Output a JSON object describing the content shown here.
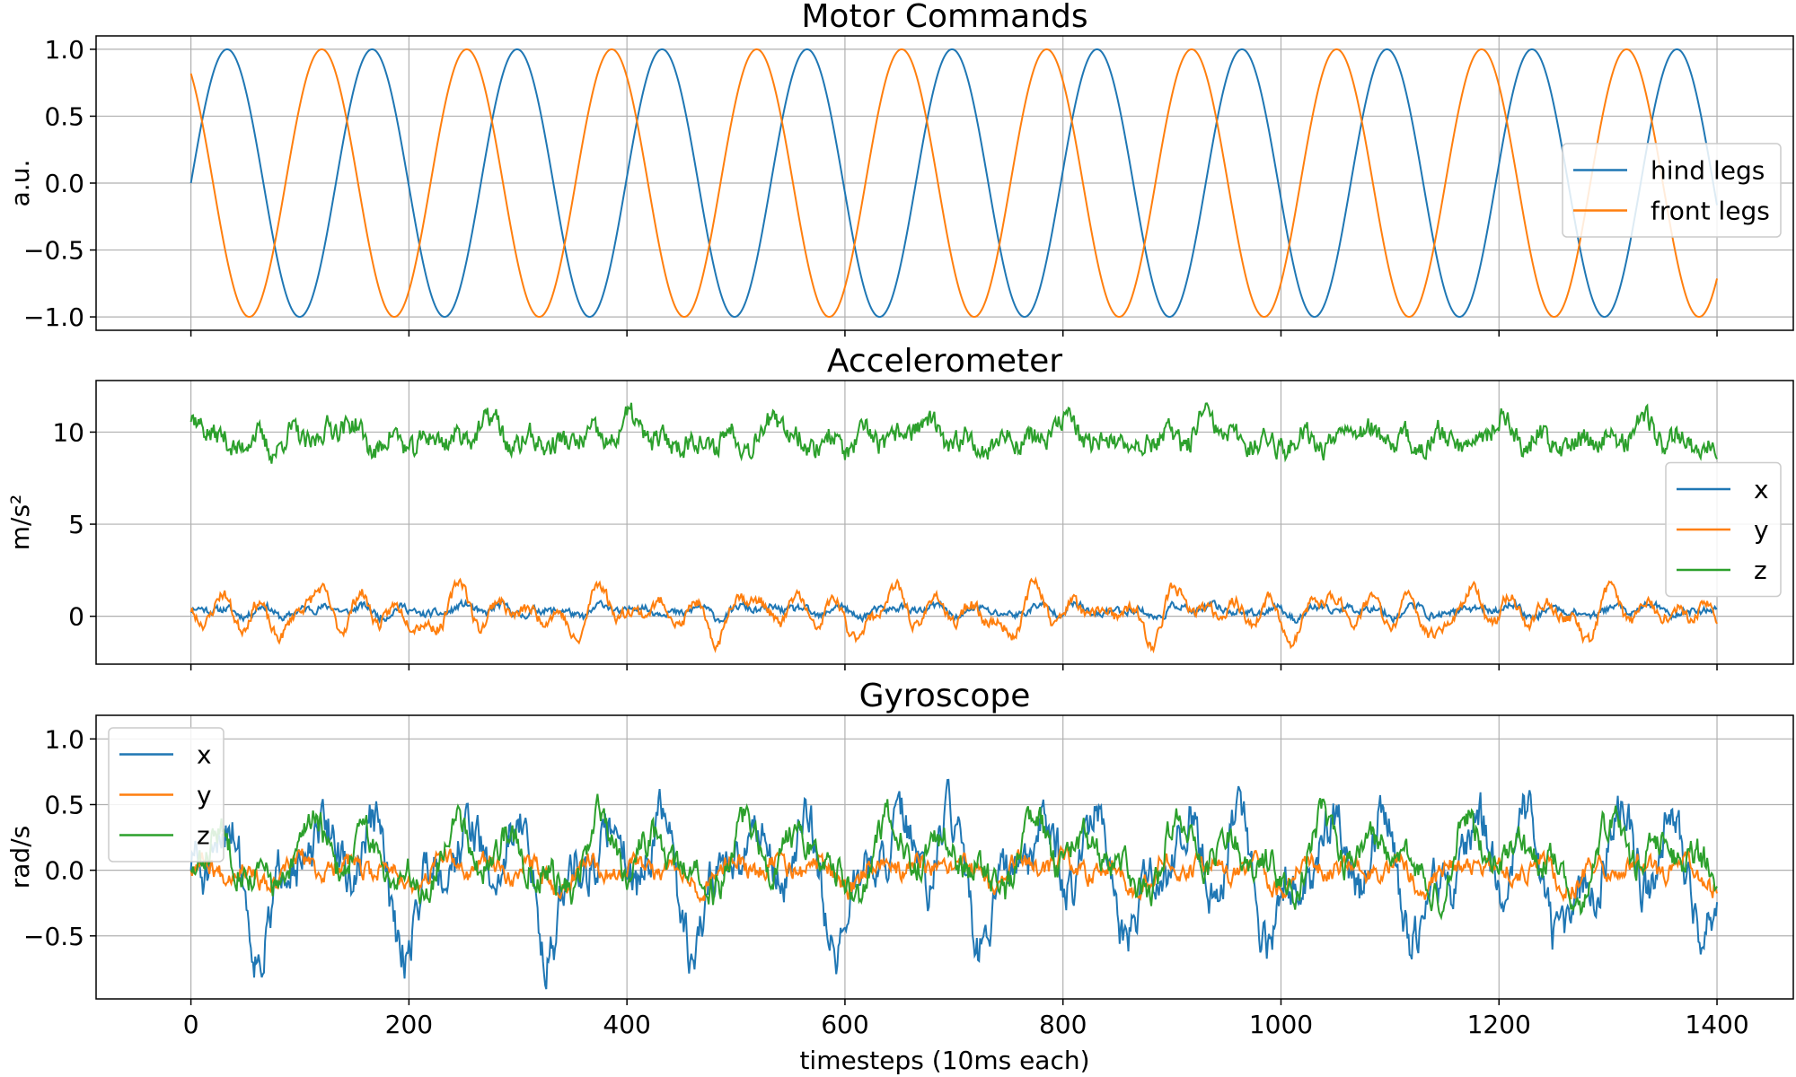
{
  "chart_data": [
    {
      "type": "line",
      "title": "Motor Commands",
      "ylabel": "a.u.",
      "xlim": [
        -87,
        1470
      ],
      "ylim": [
        -1.1,
        1.1
      ],
      "xticks": [
        0,
        200,
        400,
        600,
        800,
        1000,
        1200,
        1400
      ],
      "yticks": [
        1.0,
        0.5,
        0.0,
        -0.5,
        -1.0
      ],
      "ytick_labels": [
        "1.0",
        "0.5",
        "0.0",
        "−0.5",
        "−1.0"
      ],
      "grid": true,
      "legend_position": "center-right",
      "signal": {
        "period_timesteps": 133,
        "x_start": 0,
        "x_end": 1400
      },
      "series": [
        {
          "name": "hind legs",
          "color": "#1f77b4",
          "phase_deg": 0
        },
        {
          "name": "front legs",
          "color": "#ff7f0e",
          "phase_deg": 125
        }
      ]
    },
    {
      "type": "line",
      "title": "Accelerometer",
      "ylabel": "m/s²",
      "xlim": [
        -87,
        1470
      ],
      "ylim": [
        -2.6,
        12.8
      ],
      "xticks": [
        0,
        200,
        400,
        600,
        800,
        1000,
        1200,
        1400
      ],
      "yticks": [
        10,
        5,
        0
      ],
      "ytick_labels": [
        "10",
        "5",
        "0"
      ],
      "grid": true,
      "legend_position": "center-right",
      "series": [
        {
          "name": "x",
          "color": "#1f77b4",
          "mean": 0.3,
          "amplitude": 0.5
        },
        {
          "name": "y",
          "color": "#ff7f0e",
          "mean": 0.2,
          "amplitude": 2.0
        },
        {
          "name": "z",
          "color": "#2ca02c",
          "mean": 9.7,
          "amplitude": 1.3
        }
      ]
    },
    {
      "type": "line",
      "title": "Gyroscope",
      "ylabel": "rad/s",
      "xlabel": "timesteps (10ms each)",
      "xlim": [
        -87,
        1470
      ],
      "ylim": [
        -0.98,
        1.18
      ],
      "xticks": [
        0,
        200,
        400,
        600,
        800,
        1000,
        1200,
        1400
      ],
      "xtick_labels": [
        "0",
        "200",
        "400",
        "600",
        "800",
        "1000",
        "1200",
        "1400"
      ],
      "yticks": [
        1.0,
        0.5,
        0.0,
        -0.5
      ],
      "ytick_labels": [
        "1.0",
        "0.5",
        "0.0",
        "−0.5"
      ],
      "grid": true,
      "legend_position": "upper-left",
      "series": [
        {
          "name": "x",
          "color": "#1f77b4",
          "mean": 0.0,
          "amplitude": 0.7
        },
        {
          "name": "y",
          "color": "#ff7f0e",
          "mean": 0.0,
          "amplitude": 0.15
        },
        {
          "name": "z",
          "color": "#2ca02c",
          "mean": 0.1,
          "amplitude": 0.4
        }
      ]
    }
  ]
}
